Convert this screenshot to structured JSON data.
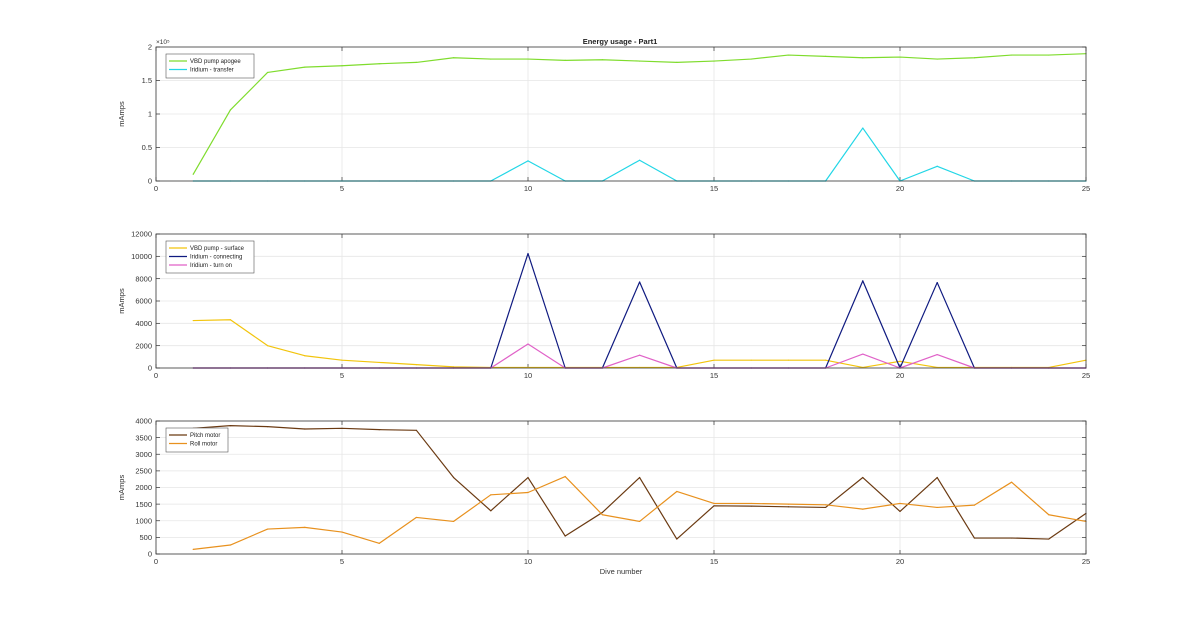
{
  "figure_title": "Energy usage - Part1",
  "chart_data": [
    {
      "type": "line",
      "title": "Energy usage - Part1",
      "xlabel": "",
      "ylabel": "mAmps",
      "xlim": [
        0,
        25
      ],
      "ylim": [
        0,
        2
      ],
      "y_exponent_label": "×10⁵",
      "x_ticks": [
        0,
        5,
        10,
        15,
        20,
        25
      ],
      "y_ticks": [
        0,
        0.5,
        1,
        1.5,
        2
      ],
      "y_tick_labels": [
        "0",
        "0.5",
        "1",
        "1.5",
        "2"
      ],
      "grid": true,
      "legend_position": "top-left",
      "x": [
        1,
        2,
        3,
        4,
        5,
        6,
        7,
        8,
        9,
        10,
        11,
        12,
        13,
        14,
        15,
        16,
        17,
        18,
        19,
        20,
        21,
        22,
        23,
        24,
        25
      ],
      "series": [
        {
          "name": "VBD pump apogee",
          "color": "#7fdc2d",
          "values": [
            0.1,
            1.06,
            1.62,
            1.7,
            1.72,
            1.75,
            1.77,
            1.84,
            1.82,
            1.82,
            1.8,
            1.81,
            1.79,
            1.77,
            1.79,
            1.82,
            1.88,
            1.86,
            1.84,
            1.85,
            1.82,
            1.84,
            1.88,
            1.88,
            1.9
          ]
        },
        {
          "name": "Iridium - transfer",
          "color": "#22d6e6",
          "values": [
            0,
            0,
            0,
            0,
            0,
            0,
            0,
            0,
            0,
            0.3,
            0,
            0,
            0.31,
            0,
            0,
            0,
            0,
            0,
            0.79,
            0,
            0.22,
            0,
            0,
            0,
            0
          ]
        }
      ]
    },
    {
      "type": "line",
      "title": "",
      "xlabel": "",
      "ylabel": "mAmps",
      "xlim": [
        0,
        25
      ],
      "ylim": [
        0,
        12000
      ],
      "x_ticks": [
        0,
        5,
        10,
        15,
        20,
        25
      ],
      "y_ticks": [
        0,
        2000,
        4000,
        6000,
        8000,
        10000,
        12000
      ],
      "y_tick_labels": [
        "0",
        "2000",
        "4000",
        "6000",
        "8000",
        "10000",
        "12000"
      ],
      "grid": true,
      "legend_position": "top-left",
      "x": [
        1,
        2,
        3,
        4,
        5,
        6,
        7,
        8,
        9,
        10,
        11,
        12,
        13,
        14,
        15,
        16,
        17,
        18,
        19,
        20,
        21,
        22,
        23,
        24,
        25
      ],
      "series": [
        {
          "name": "VBD pump - surface",
          "color": "#f2c40c",
          "values": [
            4250,
            4320,
            2000,
            1100,
            700,
            500,
            300,
            100,
            50,
            50,
            50,
            50,
            50,
            50,
            700,
            700,
            700,
            700,
            50,
            600,
            50,
            50,
            50,
            50,
            700
          ]
        },
        {
          "name": "Iridium - connecting",
          "color": "#0f1a80",
          "values": [
            0,
            0,
            0,
            0,
            0,
            0,
            0,
            0,
            0,
            10250,
            0,
            0,
            7700,
            0,
            0,
            0,
            0,
            0,
            7800,
            0,
            7650,
            0,
            0,
            0,
            0
          ]
        },
        {
          "name": "Iridium - turn on",
          "color": "#e062c8",
          "values": [
            0,
            0,
            0,
            0,
            0,
            0,
            0,
            0,
            0,
            2150,
            0,
            0,
            1150,
            0,
            0,
            0,
            0,
            0,
            1250,
            0,
            1200,
            0,
            0,
            0,
            0
          ]
        }
      ]
    },
    {
      "type": "line",
      "title": "",
      "xlabel": "Dive number",
      "ylabel": "mAmps",
      "xlim": [
        0,
        25
      ],
      "ylim": [
        0,
        4000
      ],
      "x_ticks": [
        0,
        5,
        10,
        15,
        20,
        25
      ],
      "y_ticks": [
        0,
        500,
        1000,
        1500,
        2000,
        2500,
        3000,
        3500,
        4000
      ],
      "y_tick_labels": [
        "0",
        "500",
        "1000",
        "1500",
        "2000",
        "2500",
        "3000",
        "3500",
        "4000"
      ],
      "grid": true,
      "legend_position": "top-left",
      "x": [
        1,
        2,
        3,
        4,
        5,
        6,
        7,
        8,
        9,
        10,
        11,
        12,
        13,
        14,
        15,
        16,
        17,
        18,
        19,
        20,
        21,
        22,
        23,
        24,
        25
      ],
      "series": [
        {
          "name": "Pitch motor",
          "color": "#6b3a12",
          "values": [
            3780,
            3860,
            3830,
            3760,
            3780,
            3740,
            3720,
            2300,
            1300,
            2300,
            540,
            1250,
            2300,
            450,
            1450,
            1440,
            1420,
            1400,
            2300,
            1280,
            2300,
            480,
            480,
            450,
            1220
          ]
        },
        {
          "name": "Roll motor",
          "color": "#e8911e",
          "values": [
            140,
            270,
            750,
            800,
            660,
            320,
            1100,
            980,
            1780,
            1850,
            2330,
            1180,
            980,
            1880,
            1520,
            1520,
            1500,
            1480,
            1350,
            1520,
            1400,
            1470,
            2160,
            1180,
            980
          ]
        }
      ]
    }
  ]
}
